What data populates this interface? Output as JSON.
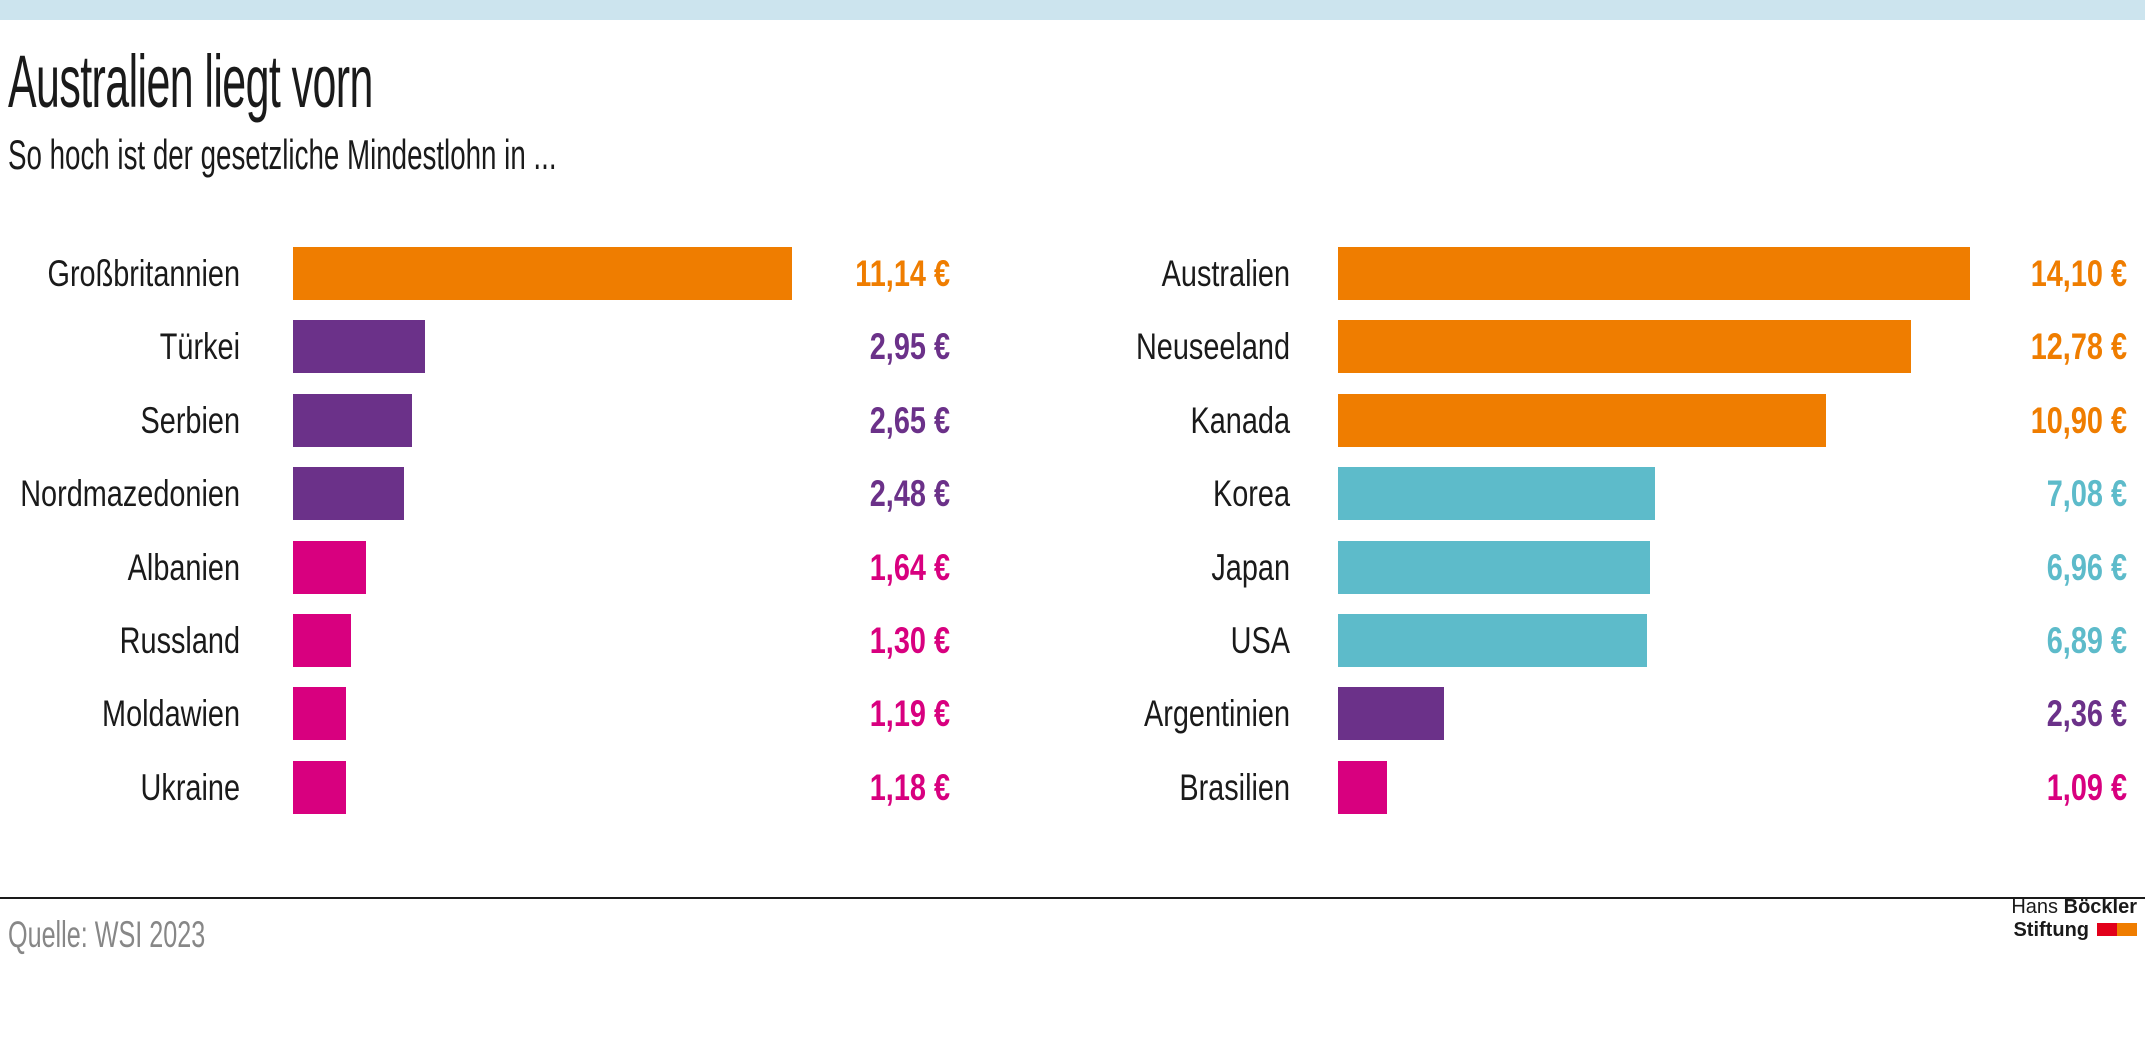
{
  "header": {
    "title": "Australien liegt vorn",
    "subtitle": "So hoch ist der gesetzliche Mindestlohn in ..."
  },
  "footer": {
    "source": "Quelle: WSI 2023",
    "logo": {
      "name_regular": "Hans",
      "name_bold": "Böckler",
      "line2": "Stiftung",
      "red_square": "#e2001a",
      "orange_square": "#ef7d00"
    }
  },
  "palette": {
    "orange": "#ef7d00",
    "purple": "#6b3189",
    "pink": "#d8007f",
    "teal": "#5dbbca",
    "topbar": "#cce4ee",
    "text": "#1a1a1a",
    "source_gray": "#878787"
  },
  "chart_data": {
    "type": "bar",
    "orientation": "horizontal",
    "unit": "€",
    "number_format": "de-DE",
    "xlim": [
      0,
      14.5
    ],
    "grid": false,
    "legend": false,
    "title": "Australien liegt vorn",
    "subtitle": "So hoch ist der gesetzliche Mindestlohn in ...",
    "source": "Quelle: WSI 2023",
    "panels": [
      {
        "items": [
          {
            "country": "Großbritannien",
            "value": 11.14,
            "label": "11,14 €",
            "color": "orange"
          },
          {
            "country": "Türkei",
            "value": 2.95,
            "label": "2,95 €",
            "color": "purple"
          },
          {
            "country": "Serbien",
            "value": 2.65,
            "label": "2,65 €",
            "color": "purple"
          },
          {
            "country": "Nordmazedonien",
            "value": 2.48,
            "label": "2,48 €",
            "color": "purple"
          },
          {
            "country": "Albanien",
            "value": 1.64,
            "label": "1,64 €",
            "color": "pink"
          },
          {
            "country": "Russland",
            "value": 1.3,
            "label": "1,30 €",
            "color": "pink"
          },
          {
            "country": "Moldawien",
            "value": 1.19,
            "label": "1,19 €",
            "color": "pink"
          },
          {
            "country": "Ukraine",
            "value": 1.18,
            "label": "1,18 €",
            "color": "pink"
          }
        ]
      },
      {
        "items": [
          {
            "country": "Australien",
            "value": 14.1,
            "label": "14,10 €",
            "color": "orange"
          },
          {
            "country": "Neuseeland",
            "value": 12.78,
            "label": "12,78 €",
            "color": "orange"
          },
          {
            "country": "Kanada",
            "value": 10.9,
            "label": "10,90 €",
            "color": "orange"
          },
          {
            "country": "Korea",
            "value": 7.08,
            "label": "7,08 €",
            "color": "teal"
          },
          {
            "country": "Japan",
            "value": 6.96,
            "label": "6,96 €",
            "color": "teal"
          },
          {
            "country": "USA",
            "value": 6.89,
            "label": "6,89 €",
            "color": "teal"
          },
          {
            "country": "Argentinien",
            "value": 2.36,
            "label": "2,36 €",
            "color": "purple"
          },
          {
            "country": "Brasilien",
            "value": 1.09,
            "label": "1,09 €",
            "color": "pink"
          }
        ]
      }
    ]
  }
}
